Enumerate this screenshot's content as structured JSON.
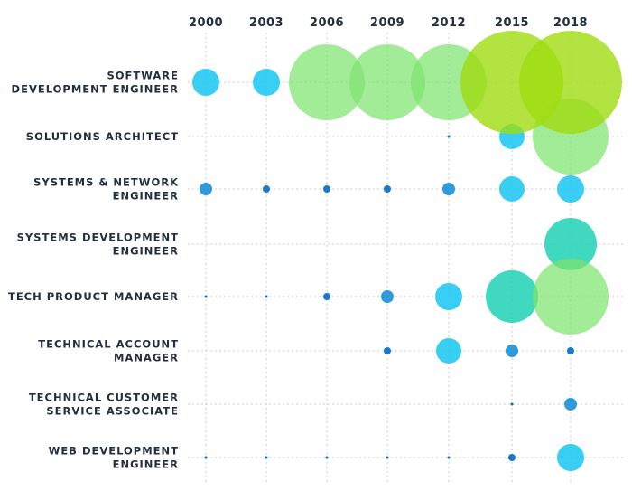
{
  "chart_data": {
    "type": "bubble",
    "title": "",
    "x": [
      "2000",
      "2003",
      "2006",
      "2009",
      "2012",
      "2015",
      "2018"
    ],
    "categories": [
      "SOFTWARE DEVELOPMENT ENGINEER",
      "SOLUTIONS ARCHITECT",
      "SYSTEMS & NETWORK ENGINEER",
      "SYSTEMS DEVELOPMENT ENGINEER",
      "TECH PRODUCT MANAGER",
      "TECHNICAL ACCOUNT MANAGER",
      "TECHNICAL CUSTOMER SERVICE ASSOCIATE",
      "WEB DEVELOPMENT ENGINEER"
    ],
    "label_lines": [
      [
        "SOFTWARE",
        "DEVELOPMENT ENGINEER"
      ],
      [
        "SOLUTIONS ARCHITECT"
      ],
      [
        "SYSTEMS & NETWORK",
        "ENGINEER"
      ],
      [
        "SYSTEMS DEVELOPMENT",
        "ENGINEER"
      ],
      [
        "TECH PRODUCT MANAGER"
      ],
      [
        "TECHNICAL ACCOUNT",
        "MANAGER"
      ],
      [
        "TECHNICAL CUSTOMER",
        "SERVICE ASSOCIATE"
      ],
      [
        "WEB DEVELOPMENT",
        "ENGINEER"
      ]
    ],
    "values": [
      [
        15,
        15,
        42,
        42,
        42,
        57,
        57
      ],
      [
        0,
        0,
        0,
        0,
        1.5,
        14,
        42
      ],
      [
        7,
        4,
        4,
        4,
        7,
        14,
        15
      ],
      [
        0,
        0,
        0,
        0,
        0,
        0,
        29
      ],
      [
        1.5,
        1.5,
        4,
        7,
        15,
        29,
        42
      ],
      [
        0,
        0,
        0,
        4,
        14,
        7,
        4
      ],
      [
        0,
        0,
        0,
        0,
        0,
        1.5,
        7
      ],
      [
        1.5,
        1.5,
        1.5,
        1.5,
        1.5,
        4,
        15
      ]
    ],
    "value_unit": "relative bubble size (radius)",
    "colors": {
      "small": "#0a6ec7",
      "medium": "#1ec8f4",
      "teal": "#1fd1b4",
      "large": "#7ee36f",
      "largest": "#9fdc10",
      "grid": "#c9ced4",
      "text": "#232f3e"
    }
  }
}
